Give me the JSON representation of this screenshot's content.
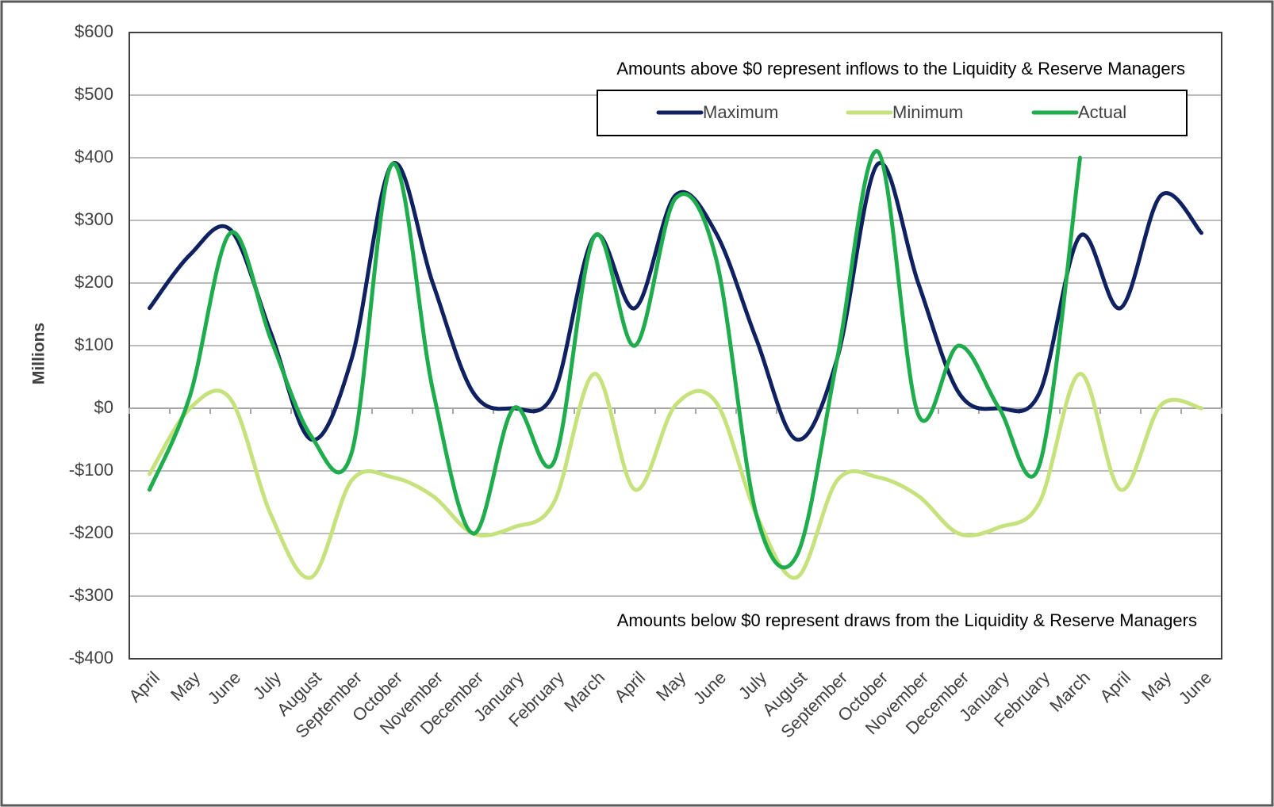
{
  "chart_data": {
    "type": "line",
    "y_axis_label": "Millions",
    "annotations": [
      "Amounts above $0 represent inflows to the Liquidity & Reserve Managers",
      "Amounts below $0 represent draws from the Liquidity & Reserve Managers"
    ],
    "categories": [
      "April",
      "May",
      "June",
      "July",
      "August",
      "September",
      "October",
      "November",
      "December",
      "January",
      "February",
      "March",
      "April",
      "May",
      "June",
      "July",
      "August",
      "September",
      "October",
      "November",
      "December",
      "January",
      "February",
      "March",
      "April",
      "May",
      "June"
    ],
    "series": [
      {
        "name": "Maximum",
        "color": "#0f2160",
        "values": [
          160,
          245,
          285,
          120,
          -50,
          80,
          390,
          200,
          25,
          0,
          25,
          275,
          160,
          340,
          280,
          110,
          -50,
          80,
          390,
          200,
          25,
          0,
          25,
          275,
          160,
          340,
          280
        ]
      },
      {
        "name": "Minimum",
        "color": "#c6e27c",
        "values": [
          -105,
          0,
          15,
          -170,
          -270,
          -115,
          -110,
          -140,
          -200,
          -190,
          -150,
          55,
          -130,
          5,
          10,
          -170,
          -270,
          -115,
          -110,
          -140,
          -200,
          -190,
          -150,
          55,
          -130,
          5,
          0
        ]
      },
      {
        "name": "Actual",
        "color": "#1fac4c",
        "values": [
          -130,
          20,
          280,
          110,
          -45,
          -70,
          390,
          30,
          -200,
          0,
          -85,
          275,
          100,
          335,
          240,
          -170,
          -235,
          80,
          410,
          -10,
          100,
          0,
          -90,
          400,
          null,
          null,
          null
        ]
      }
    ],
    "ylim": [
      -400,
      600
    ],
    "yticks": [
      {
        "value": -400,
        "label": "-$400"
      },
      {
        "value": -300,
        "label": "-$300"
      },
      {
        "value": -200,
        "label": "-$200"
      },
      {
        "value": -100,
        "label": "-$100"
      },
      {
        "value": 0,
        "label": "$0"
      },
      {
        "value": 100,
        "label": "$100"
      },
      {
        "value": 200,
        "label": "$200"
      },
      {
        "value": 300,
        "label": "$300"
      },
      {
        "value": 400,
        "label": "$400"
      },
      {
        "value": 500,
        "label": "$500"
      },
      {
        "value": 600,
        "label": "$600"
      }
    ],
    "grid": true
  }
}
